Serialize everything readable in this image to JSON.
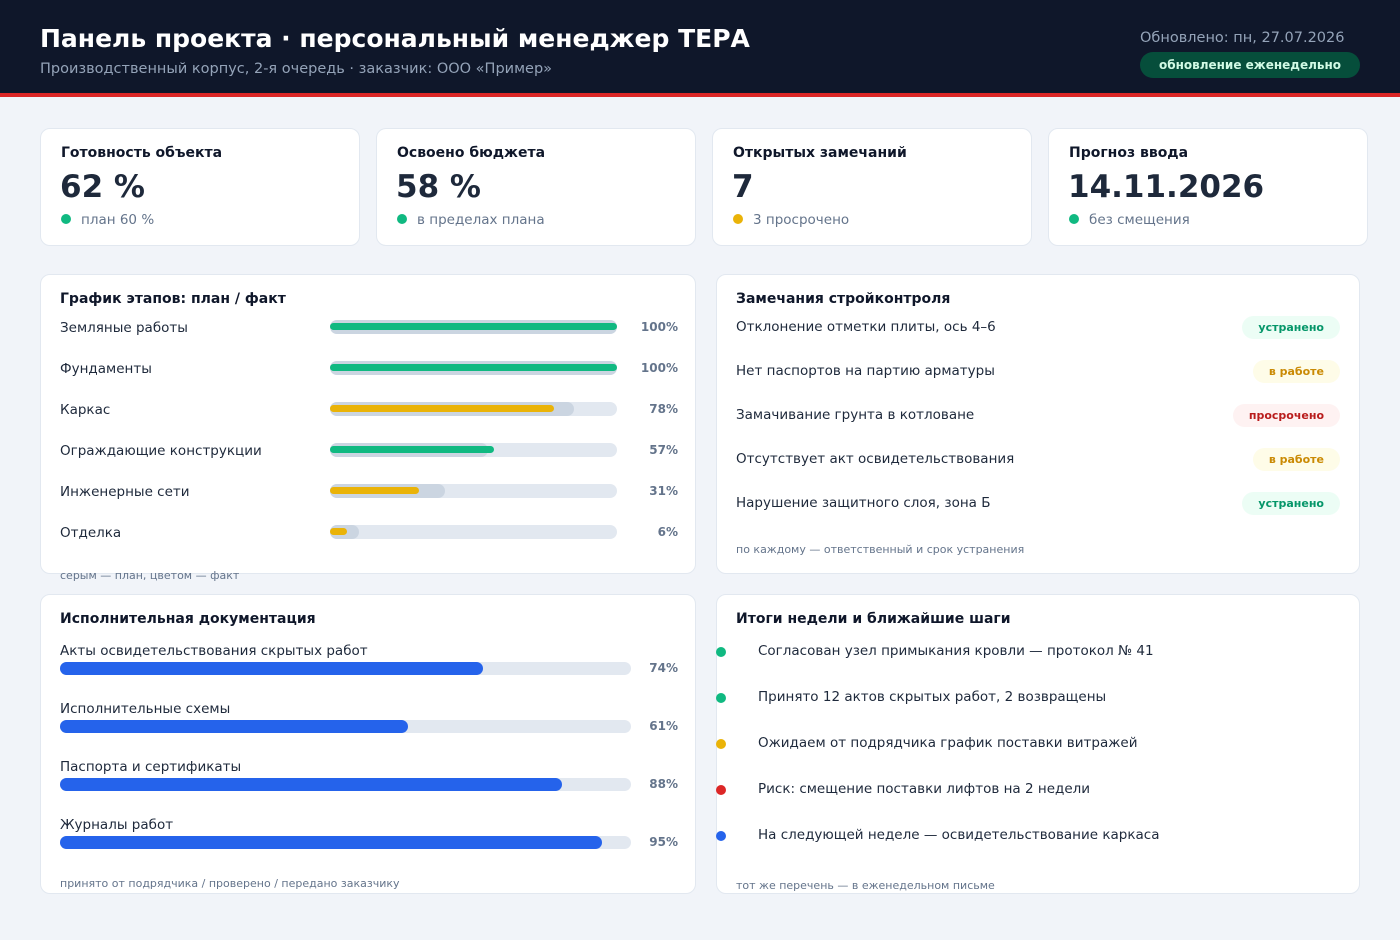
{
  "header": {
    "title": "Панель проекта · персональный менеджер ТЕРА",
    "subtitle": "Производственный корпус, 2-я очередь  ·  заказчик: ООО «Пример»",
    "updated": "Обновлено: пн, 27.07.2026",
    "badge": "обновление еженедельно"
  },
  "colors": {
    "ok": "#10b981",
    "warn": "#eab308",
    "danger": "#dc2626",
    "info": "#2563eb",
    "plan": "#cbd5e1"
  },
  "kpis": [
    {
      "label": "Готовность объекта",
      "value": "62 %",
      "note": "план 60 %",
      "status": "ok"
    },
    {
      "label": "Освоено бюджета",
      "value": "58 %",
      "note": "в пределах плана",
      "status": "ok"
    },
    {
      "label": "Открытых замечаний",
      "value": "7",
      "note": "3 просрочено",
      "status": "warn"
    },
    {
      "label": "Прогноз ввода",
      "value": "14.11.2026",
      "note": "без смещения",
      "status": "ok"
    }
  ],
  "schedule": {
    "title": "График этапов: план / факт",
    "footnote": "серым — план, цветом — факт",
    "stages": [
      {
        "name": "Земляные работы",
        "plan": 100,
        "fact": 100,
        "pct": "100%",
        "status": "ok"
      },
      {
        "name": "Фундаменты",
        "plan": 100,
        "fact": 100,
        "pct": "100%",
        "status": "ok"
      },
      {
        "name": "Каркас",
        "plan": 85,
        "fact": 78,
        "pct": "78%",
        "status": "warn"
      },
      {
        "name": "Ограждающие конструкции",
        "plan": 55,
        "fact": 57,
        "pct": "57%",
        "status": "ok"
      },
      {
        "name": "Инженерные сети",
        "plan": 40,
        "fact": 31,
        "pct": "31%",
        "status": "warn"
      },
      {
        "name": "Отделка",
        "plan": 10,
        "fact": 6,
        "pct": "6%",
        "status": "warn"
      }
    ]
  },
  "issues": {
    "title": "Замечания стройконтроля",
    "footnote": "по каждому — ответственный и срок устранения",
    "items": [
      {
        "text": "Отклонение отметки плиты, ось 4–6",
        "status": "устранено",
        "kind": "ok"
      },
      {
        "text": "Нет паспортов на партию арматуры",
        "status": "в работе",
        "kind": "warn"
      },
      {
        "text": "Замачивание грунта в котловане",
        "status": "просрочено",
        "kind": "danger"
      },
      {
        "text": "Отсутствует акт освидетельствования",
        "status": "в работе",
        "kind": "warn"
      },
      {
        "text": "Нарушение защитного слоя, зона Б",
        "status": "устранено",
        "kind": "ok"
      }
    ]
  },
  "docs": {
    "title": "Исполнительная документация",
    "footnote": "принято от подрядчика / проверено / передано заказчику",
    "items": [
      {
        "name": "Акты освидетельствования скрытых работ",
        "value": 74,
        "pct": "74%"
      },
      {
        "name": "Исполнительные схемы",
        "value": 61,
        "pct": "61%"
      },
      {
        "name": "Паспорта и сертификаты",
        "value": 88,
        "pct": "88%"
      },
      {
        "name": "Журналы работ",
        "value": 95,
        "pct": "95%"
      }
    ]
  },
  "summary": {
    "title": "Итоги недели и ближайшие шаги",
    "footnote": "тот же перечень — в еженедельном письме",
    "items": [
      {
        "text": "Согласован узел примыкания кровли — протокол № 41",
        "kind": "ok"
      },
      {
        "text": "Принято 12 актов скрытых работ, 2 возвращены",
        "kind": "ok"
      },
      {
        "text": "Ожидаем от подрядчика график поставки витражей",
        "kind": "warn"
      },
      {
        "text": "Риск: смещение поставки лифтов на 2 недели",
        "kind": "danger"
      },
      {
        "text": "На следующей неделе — освидетельствование каркаса",
        "kind": "info"
      }
    ]
  }
}
